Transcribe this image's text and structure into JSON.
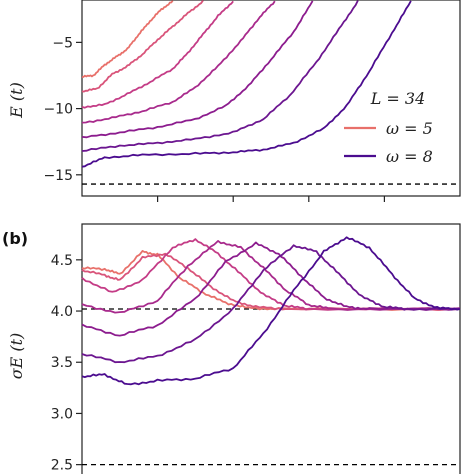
{
  "colors": {
    "series": [
      "#e8706a",
      "#d9547a",
      "#c43c86",
      "#a82a8c",
      "#8c1c8e",
      "#6c1690",
      "#4b0c8f"
    ],
    "ref_line": "#000000",
    "axis": "#222222"
  },
  "chart_data": [
    {
      "panel_label": "",
      "type": "line",
      "ylabel": "E (t)",
      "xlabel": "",
      "xlim": [
        0,
        5
      ],
      "ylim": [
        -16.6,
        -1.8
      ],
      "yticks": [
        -5,
        -10,
        -15
      ],
      "ytick_labels": [
        "−5",
        "−10",
        "−15"
      ],
      "xticks": [
        1,
        2,
        3,
        4
      ],
      "xtick_labels": [
        "",
        "",
        "",
        ""
      ],
      "grid": false,
      "reference_line": -15.7,
      "legend": {
        "title": "L = 34",
        "position": "right",
        "entries": [
          {
            "label": "ω = 5",
            "color": "#e8706a"
          },
          {
            "label": "ω = 8",
            "color": "#4b0c8f"
          }
        ]
      },
      "series": [
        {
          "points": [
            [
              0,
              -7.6
            ],
            [
              0.15,
              -7.5
            ],
            [
              0.3,
              -6.7
            ],
            [
              0.45,
              -6.1
            ],
            [
              0.6,
              -5.5
            ],
            [
              0.75,
              -4.4
            ],
            [
              0.9,
              -3.4
            ],
            [
              1.05,
              -2.5
            ],
            [
              1.2,
              -1.9
            ]
          ]
        },
        {
          "points": [
            [
              0,
              -8.7
            ],
            [
              0.2,
              -8.5
            ],
            [
              0.4,
              -7.4
            ],
            [
              0.6,
              -6.8
            ],
            [
              0.8,
              -5.9
            ],
            [
              1.0,
              -4.8
            ],
            [
              1.2,
              -3.8
            ],
            [
              1.4,
              -2.8
            ],
            [
              1.6,
              -1.9
            ]
          ]
        },
        {
          "points": [
            [
              0,
              -9.9
            ],
            [
              0.3,
              -9.7
            ],
            [
              0.6,
              -8.9
            ],
            [
              0.9,
              -8.0
            ],
            [
              1.2,
              -7.0
            ],
            [
              1.4,
              -5.8
            ],
            [
              1.6,
              -4.4
            ],
            [
              1.8,
              -3.0
            ],
            [
              2.0,
              -1.9
            ]
          ]
        },
        {
          "points": [
            [
              0,
              -11.1
            ],
            [
              0.4,
              -10.7
            ],
            [
              0.8,
              -10.2
            ],
            [
              1.2,
              -9.5
            ],
            [
              1.5,
              -8.4
            ],
            [
              1.8,
              -6.8
            ],
            [
              2.1,
              -4.9
            ],
            [
              2.35,
              -3.1
            ],
            [
              2.55,
              -1.9
            ]
          ]
        },
        {
          "points": [
            [
              0,
              -12.2
            ],
            [
              0.5,
              -11.8
            ],
            [
              1.0,
              -11.4
            ],
            [
              1.5,
              -10.8
            ],
            [
              1.9,
              -9.8
            ],
            [
              2.2,
              -8.3
            ],
            [
              2.5,
              -6.3
            ],
            [
              2.8,
              -4.2
            ],
            [
              3.05,
              -1.9
            ]
          ]
        },
        {
          "points": [
            [
              0,
              -13.2
            ],
            [
              0.5,
              -12.8
            ],
            [
              1.0,
              -12.6
            ],
            [
              1.5,
              -12.3
            ],
            [
              2.0,
              -11.8
            ],
            [
              2.4,
              -10.8
            ],
            [
              2.75,
              -9.0
            ],
            [
              3.1,
              -6.5
            ],
            [
              3.4,
              -4.0
            ],
            [
              3.65,
              -1.9
            ]
          ]
        },
        {
          "points": [
            [
              0,
              -14.4
            ],
            [
              0.3,
              -13.7
            ],
            [
              0.8,
              -13.5
            ],
            [
              1.5,
              -13.4
            ],
            [
              2.0,
              -13.3
            ],
            [
              2.4,
              -13.1
            ],
            [
              2.8,
              -12.6
            ],
            [
              3.2,
              -11.5
            ],
            [
              3.5,
              -9.8
            ],
            [
              3.8,
              -7.2
            ],
            [
              4.1,
              -4.3
            ],
            [
              4.35,
              -1.9
            ]
          ]
        }
      ]
    },
    {
      "panel_label": "(b)",
      "type": "line",
      "ylabel": "σE (t)",
      "xlabel": "",
      "xlim": [
        0,
        5
      ],
      "ylim": [
        2.35,
        4.85
      ],
      "yticks": [
        2.5,
        3.0,
        3.5,
        4.0,
        4.5
      ],
      "ytick_labels": [
        "2.5",
        "3.0",
        "3.5",
        "4.0",
        "4.5"
      ],
      "grid": false,
      "reference_lines": [
        4.02,
        2.5
      ],
      "series": [
        {
          "points": [
            [
              0,
              4.42
            ],
            [
              0.3,
              4.41
            ],
            [
              0.5,
              4.36
            ],
            [
              0.8,
              4.58
            ],
            [
              1.0,
              4.55
            ],
            [
              1.3,
              4.32
            ],
            [
              1.6,
              4.18
            ],
            [
              1.9,
              4.08
            ],
            [
              2.2,
              4.03
            ],
            [
              2.6,
              4.02
            ],
            [
              5,
              4.02
            ]
          ]
        },
        {
          "points": [
            [
              0,
              4.4
            ],
            [
              0.3,
              4.35
            ],
            [
              0.5,
              4.3
            ],
            [
              0.8,
              4.52
            ],
            [
              1.1,
              4.56
            ],
            [
              1.4,
              4.42
            ],
            [
              1.7,
              4.24
            ],
            [
              2.0,
              4.1
            ],
            [
              2.3,
              4.04
            ],
            [
              2.7,
              4.02
            ],
            [
              5,
              4.02
            ]
          ]
        },
        {
          "points": [
            [
              0,
              4.32
            ],
            [
              0.4,
              4.18
            ],
            [
              0.8,
              4.3
            ],
            [
              1.2,
              4.62
            ],
            [
              1.5,
              4.7
            ],
            [
              1.8,
              4.56
            ],
            [
              2.1,
              4.36
            ],
            [
              2.4,
              4.16
            ],
            [
              2.7,
              4.05
            ],
            [
              3.0,
              4.02
            ],
            [
              5,
              4.02
            ]
          ]
        },
        {
          "points": [
            [
              0,
              4.06
            ],
            [
              0.5,
              3.98
            ],
            [
              1.0,
              4.1
            ],
            [
              1.4,
              4.44
            ],
            [
              1.8,
              4.68
            ],
            [
              2.1,
              4.62
            ],
            [
              2.4,
              4.42
            ],
            [
              2.7,
              4.2
            ],
            [
              3.0,
              4.06
            ],
            [
              3.3,
              4.02
            ],
            [
              5,
              4.02
            ]
          ]
        },
        {
          "points": [
            [
              0,
              3.86
            ],
            [
              0.5,
              3.76
            ],
            [
              1.0,
              3.86
            ],
            [
              1.5,
              4.12
            ],
            [
              1.9,
              4.48
            ],
            [
              2.3,
              4.66
            ],
            [
              2.6,
              4.56
            ],
            [
              2.9,
              4.34
            ],
            [
              3.2,
              4.13
            ],
            [
              3.5,
              4.04
            ],
            [
              3.8,
              4.02
            ],
            [
              5,
              4.02
            ]
          ]
        },
        {
          "points": [
            [
              0,
              3.58
            ],
            [
              0.5,
              3.5
            ],
            [
              1.0,
              3.56
            ],
            [
              1.5,
              3.72
            ],
            [
              2.0,
              4.02
            ],
            [
              2.4,
              4.4
            ],
            [
              2.8,
              4.64
            ],
            [
              3.1,
              4.58
            ],
            [
              3.4,
              4.36
            ],
            [
              3.7,
              4.14
            ],
            [
              4.0,
              4.04
            ],
            [
              4.3,
              4.02
            ],
            [
              5,
              4.02
            ]
          ]
        },
        {
          "points": [
            [
              0,
              3.36
            ],
            [
              0.3,
              3.38
            ],
            [
              0.6,
              3.28
            ],
            [
              1.0,
              3.32
            ],
            [
              1.5,
              3.34
            ],
            [
              2.0,
              3.44
            ],
            [
              2.4,
              3.78
            ],
            [
              2.8,
              4.2
            ],
            [
              3.2,
              4.58
            ],
            [
              3.5,
              4.72
            ],
            [
              3.8,
              4.62
            ],
            [
              4.1,
              4.36
            ],
            [
              4.4,
              4.12
            ],
            [
              4.7,
              4.03
            ],
            [
              5,
              4.02
            ]
          ]
        }
      ]
    }
  ]
}
